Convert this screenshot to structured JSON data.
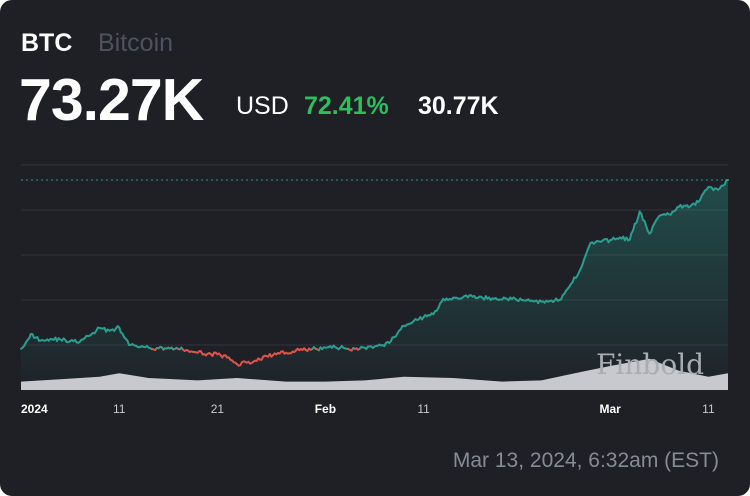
{
  "header": {
    "ticker": "BTC",
    "name": "Bitcoin",
    "price": "73.27K",
    "currency": "USD",
    "change_pct": "72.41%",
    "change_abs": "30.77K"
  },
  "timestamp": "Mar 13, 2024, 6:32am (EST)",
  "watermark": "Finbold",
  "colors": {
    "background": "#1e2026",
    "up": "#2a9d8f",
    "down": "#e0534a",
    "positive_text": "#2ebd5f",
    "volume": "#d9dbe0",
    "gridline": "#32353d"
  },
  "chart_data": {
    "type": "line",
    "title": "",
    "xlabel": "",
    "ylabel": "",
    "x_ticks": [
      {
        "label": "2024",
        "date": "2024-01-01"
      },
      {
        "label": "11",
        "date": "2024-01-11"
      },
      {
        "label": "21",
        "date": "2024-01-21"
      },
      {
        "label": "Feb",
        "date": "2024-02-01"
      },
      {
        "label": "11",
        "date": "2024-02-11"
      },
      {
        "label": "Mar",
        "date": "2024-03-01"
      },
      {
        "label": "11",
        "date": "2024-03-11"
      }
    ],
    "xlim": [
      "2024-01-01",
      "2024-03-13"
    ],
    "ylim": [
      35000,
      76000
    ],
    "baseline": 42500,
    "reference_line": 73270,
    "grid": true,
    "series": [
      {
        "role": "price",
        "x": [
          "2024-01-01",
          "2024-01-02",
          "2024-01-03",
          "2024-01-04",
          "2024-01-05",
          "2024-01-06",
          "2024-01-07",
          "2024-01-08",
          "2024-01-09",
          "2024-01-10",
          "2024-01-11",
          "2024-01-12",
          "2024-01-13",
          "2024-01-14",
          "2024-01-15",
          "2024-01-16",
          "2024-01-17",
          "2024-01-18",
          "2024-01-19",
          "2024-01-20",
          "2024-01-21",
          "2024-01-22",
          "2024-01-23",
          "2024-01-24",
          "2024-01-25",
          "2024-01-26",
          "2024-01-27",
          "2024-01-28",
          "2024-01-29",
          "2024-01-30",
          "2024-01-31",
          "2024-02-01",
          "2024-02-02",
          "2024-02-03",
          "2024-02-04",
          "2024-02-05",
          "2024-02-06",
          "2024-02-07",
          "2024-02-08",
          "2024-02-09",
          "2024-02-10",
          "2024-02-11",
          "2024-02-12",
          "2024-02-13",
          "2024-02-14",
          "2024-02-15",
          "2024-02-16",
          "2024-02-17",
          "2024-02-18",
          "2024-02-19",
          "2024-02-20",
          "2024-02-21",
          "2024-02-22",
          "2024-02-23",
          "2024-02-24",
          "2024-02-25",
          "2024-02-26",
          "2024-02-27",
          "2024-02-28",
          "2024-02-29",
          "2024-03-01",
          "2024-03-02",
          "2024-03-03",
          "2024-03-04",
          "2024-03-05",
          "2024-03-06",
          "2024-03-07",
          "2024-03-08",
          "2024-03-09",
          "2024-03-10",
          "2024-03-11",
          "2024-03-12",
          "2024-03-13"
        ],
        "values": [
          42500,
          45200,
          44000,
          44300,
          44200,
          43900,
          43800,
          44900,
          46300,
          45800,
          46400,
          43200,
          42800,
          42700,
          42600,
          42700,
          42500,
          42200,
          41800,
          41600,
          41500,
          40900,
          39700,
          40000,
          40300,
          41200,
          41500,
          41800,
          42200,
          42300,
          42500,
          42700,
          42800,
          42600,
          42500,
          42700,
          42900,
          43000,
          44600,
          46700,
          47600,
          48300,
          48800,
          51600,
          51800,
          51900,
          52000,
          51800,
          51700,
          51500,
          51600,
          51400,
          51300,
          51100,
          51300,
          51500,
          54300,
          57100,
          61800,
          62000,
          62300,
          62800,
          62400,
          67500,
          63500,
          66700,
          67000,
          68400,
          68300,
          69300,
          72000,
          71500,
          73270
        ]
      },
      {
        "role": "volume",
        "x": [
          "2024-01-01",
          "2024-01-05",
          "2024-01-09",
          "2024-01-11",
          "2024-01-14",
          "2024-01-19",
          "2024-01-23",
          "2024-01-28",
          "2024-02-01",
          "2024-02-05",
          "2024-02-09",
          "2024-02-14",
          "2024-02-19",
          "2024-02-23",
          "2024-02-27",
          "2024-03-01",
          "2024-03-05",
          "2024-03-08",
          "2024-03-11",
          "2024-03-13"
        ],
        "values": [
          0.35,
          0.45,
          0.55,
          0.7,
          0.5,
          0.4,
          0.5,
          0.35,
          0.35,
          0.4,
          0.55,
          0.5,
          0.35,
          0.4,
          0.75,
          1.0,
          1.3,
          0.8,
          0.55,
          0.7
        ]
      }
    ]
  }
}
